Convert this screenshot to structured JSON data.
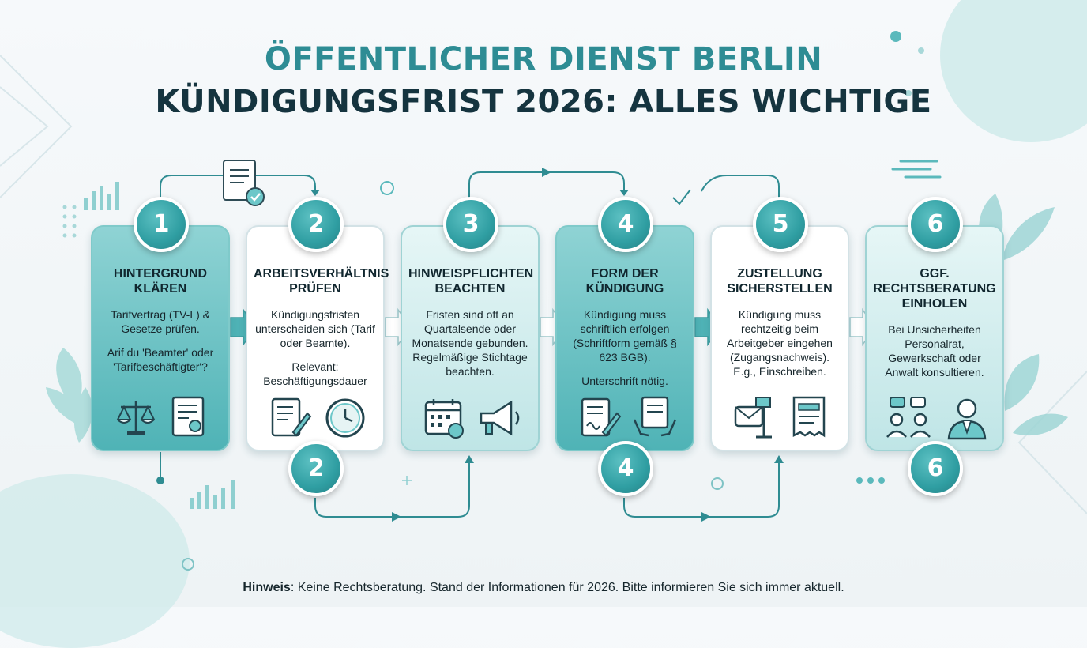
{
  "title": {
    "line1": "ÖFFENTLICHER DIENST BERLIN",
    "line2": "KÜNDIGUNGSFRIST 2026: ALLES WICHTIGE"
  },
  "steps": [
    {
      "number": "1",
      "title": "HINTERGRUND KLÄREN",
      "text": "Tarifvertrag (TV-L) & Gesetze prüfen.",
      "text2": "Arif du 'Beamter' oder 'Tarifbeschäftigter'?",
      "icons": [
        "scales-icon",
        "document-seal-icon"
      ]
    },
    {
      "number": "2",
      "title": "ARBEITSVERHÄLTNIS PRÜFEN",
      "text": "Kündigungsfristen unterscheiden sich (Tarif oder Beamte).",
      "text2": "Relevant: Beschäftigungsdauer",
      "icons": [
        "document-pen-icon",
        "clock-icon"
      ]
    },
    {
      "number": "3",
      "title": "HINWEISPFLICHTEN BEACHTEN",
      "text": "Fristen sind oft an Quartalsende oder Monatsende gebunden. Regelmäßige Stichtage beachten.",
      "text2": "",
      "icons": [
        "calendar-icon",
        "megaphone-icon"
      ]
    },
    {
      "number": "4",
      "title": "FORM DER KÜNDIGUNG",
      "text": "Kündigung muss schriftlich erfolgen (Schriftform gemäß § 623 BGB).",
      "text2": "Unterschrift nötig.",
      "icons": [
        "signed-document-icon",
        "hands-document-icon"
      ]
    },
    {
      "number": "5",
      "title": "ZUSTELLUNG SICHERSTELLEN",
      "text": "Kündigung muss rechtzeitig beim Arbeitgeber eingehen (Zugangsnachweis). E.g., Einschreiben.",
      "text2": "",
      "icons": [
        "mailbox-icon",
        "receipt-icon"
      ]
    },
    {
      "number": "6",
      "title": "GGF. RECHTSBERATUNG EINHOLEN",
      "text": "Bei Unsicherheiten Personalrat, Gewerkschaft oder Anwalt konsultieren.",
      "text2": "",
      "icons": [
        "people-chat-icon",
        "lawyer-icon"
      ]
    }
  ],
  "bottom_badges": [
    "2",
    "4",
    "6"
  ],
  "footer": {
    "label": "Hinweis",
    "text": ": Keine Rechtsberatung. Stand der Informationen für 2026. Bitte informieren Sie sich immer aktuell."
  },
  "colors": {
    "accent": "#2f9ea2",
    "title_teal": "#2e8c94",
    "title_dark": "#15343f"
  }
}
